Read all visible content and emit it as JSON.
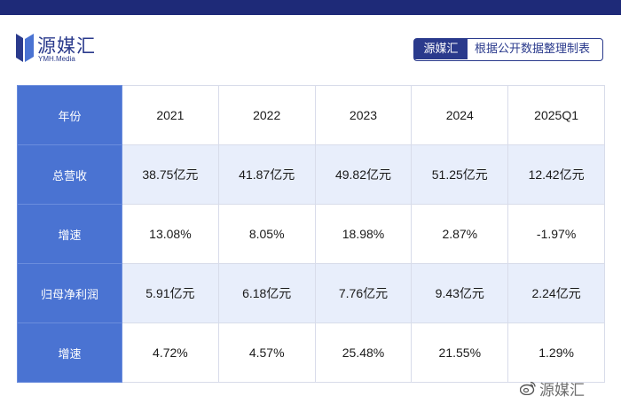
{
  "brand": {
    "name": "源媒汇",
    "sub": "YMH.Media"
  },
  "source_badge": {
    "brand": "源媒汇",
    "text": "根据公开数据整理制表"
  },
  "table": {
    "header_label": "年份",
    "years": [
      "2021",
      "2022",
      "2023",
      "2024",
      "2025Q1"
    ],
    "rows": [
      {
        "label": "总营收",
        "values": [
          "38.75亿元",
          "41.87亿元",
          "49.82亿元",
          "51.25亿元",
          "12.42亿元"
        ]
      },
      {
        "label": "增速",
        "values": [
          "13.08%",
          "8.05%",
          "18.98%",
          "2.87%",
          "-1.97%"
        ]
      },
      {
        "label": "归母净利润",
        "values": [
          "5.91亿元",
          "6.18亿元",
          "7.76亿元",
          "9.43亿元",
          "2.24亿元"
        ]
      },
      {
        "label": "增速",
        "values": [
          "4.72%",
          "4.57%",
          "25.48%",
          "21.55%",
          "1.29%"
        ]
      }
    ]
  },
  "watermark": {
    "text": "源媒汇",
    "icon": "weibo-icon"
  },
  "colors": {
    "brand_navy": "#1e2a78",
    "header_blue": "#4a73d2",
    "row_shade": "#e8eefb"
  }
}
